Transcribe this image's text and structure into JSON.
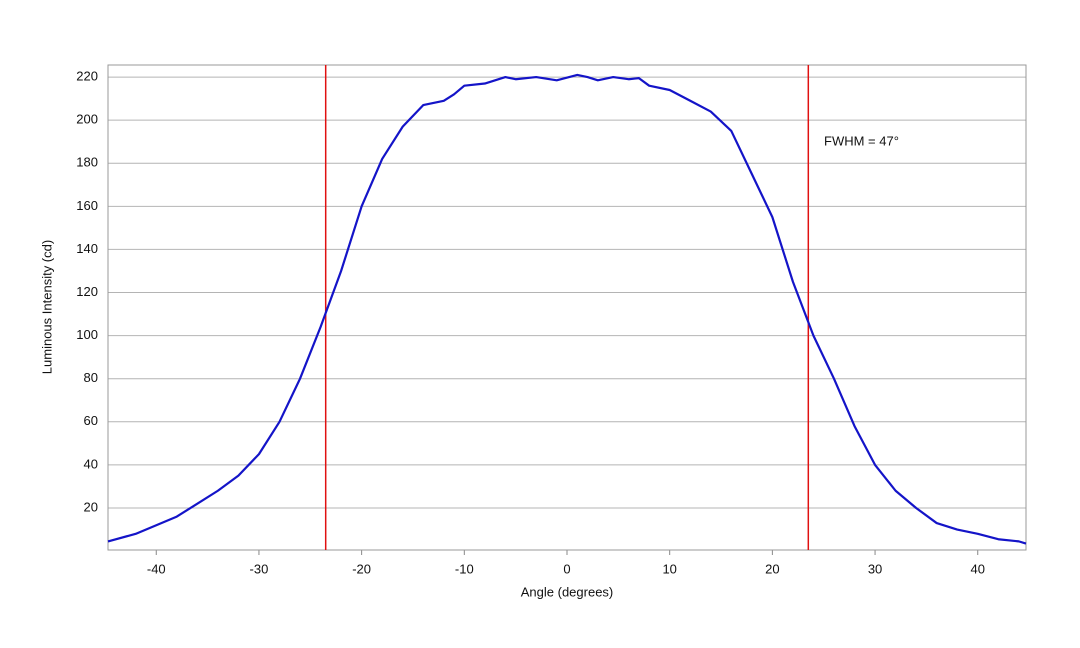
{
  "chart_data": {
    "type": "line",
    "x_label": "Angle (degrees)",
    "y_label": "Luminous Intensity (cd)",
    "annotation": "FWHM = 47°",
    "x": [
      -44.7,
      -42,
      -40,
      -38,
      -36,
      -34,
      -32,
      -30,
      -28,
      -26,
      -24,
      -22,
      -20,
      -18,
      -16,
      -14,
      -12,
      -11,
      -10,
      -8,
      -6,
      -5,
      -3,
      -1,
      1,
      2,
      3,
      4.5,
      6,
      7,
      8,
      10,
      12,
      14,
      16,
      18,
      20,
      22,
      24,
      26,
      28,
      30,
      32,
      34,
      36,
      38,
      40,
      42,
      44,
      44.7
    ],
    "series": [
      {
        "color": "#1414c8",
        "values": [
          4.5,
          8,
          12,
          16,
          22,
          28,
          35,
          45,
          60,
          80,
          104,
          130,
          160,
          182,
          197,
          207,
          209,
          212,
          216,
          217,
          220,
          219,
          220,
          218.5,
          221,
          220,
          218.5,
          220,
          219,
          219.5,
          216,
          214,
          209,
          204,
          195,
          175,
          155,
          125,
          100,
          80,
          58,
          40,
          28,
          20,
          13,
          10,
          8,
          5.5,
          4.5,
          3.5
        ]
      }
    ],
    "vlines": [
      -23.5,
      23.5
    ],
    "vline_color": "#e01010",
    "xlim": [
      -44.7,
      44.7
    ],
    "ylim": [
      0.5,
      225.6
    ],
    "xticks": [
      -40,
      -30,
      -20,
      -10,
      0,
      10,
      20,
      30,
      40
    ],
    "yticks": [
      20,
      40,
      60,
      80,
      100,
      120,
      140,
      160,
      180,
      200,
      220
    ],
    "grid": true
  }
}
